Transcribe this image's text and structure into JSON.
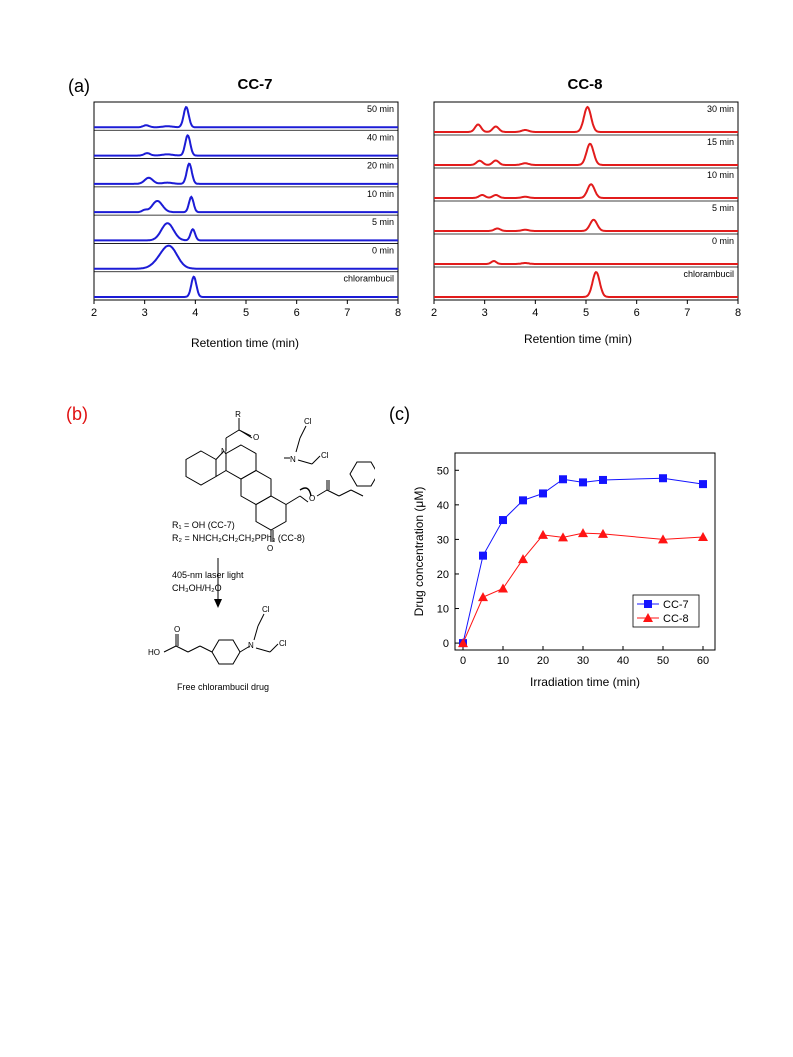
{
  "labels": {
    "a": "(a)",
    "b": "(b)",
    "c": "(c)"
  },
  "panel_a": {
    "left": {
      "title": "CC-7",
      "xlabel": "Retention time (min)",
      "xlim": [
        2,
        8
      ],
      "xticks": [
        "2",
        "3",
        "4",
        "5",
        "6",
        "7",
        "8"
      ],
      "color": "#1c1cd6",
      "traces": [
        {
          "label": "50 min",
          "peaks": [
            [
              3.82,
              1.0,
              0.05
            ],
            [
              3.03,
              0.1,
              0.06
            ],
            [
              3.45,
              0.05,
              0.1
            ]
          ]
        },
        {
          "label": "40 min",
          "peaks": [
            [
              3.85,
              1.0,
              0.05
            ],
            [
              3.05,
              0.12,
              0.06
            ],
            [
              3.45,
              0.06,
              0.1
            ]
          ]
        },
        {
          "label": "20 min",
          "peaks": [
            [
              3.88,
              1.0,
              0.05
            ],
            [
              3.08,
              0.3,
              0.08
            ],
            [
              3.45,
              0.06,
              0.1
            ]
          ]
        },
        {
          "label": "10 min",
          "peaks": [
            [
              3.92,
              0.75,
              0.045
            ],
            [
              3.25,
              0.55,
              0.1
            ],
            [
              3.0,
              0.1,
              0.05
            ]
          ]
        },
        {
          "label": "5 min",
          "peaks": [
            [
              3.95,
              0.55,
              0.045
            ],
            [
              3.45,
              0.85,
              0.12
            ]
          ]
        },
        {
          "label": "0 min",
          "peaks": [
            [
              3.5,
              1.0,
              0.15
            ],
            [
              3.3,
              0.3,
              0.15
            ]
          ]
        },
        {
          "label": "chlorambucil",
          "peaks": [
            [
              3.97,
              1.0,
              0.05
            ]
          ]
        }
      ]
    },
    "right": {
      "title": "CC-8",
      "xlabel": "Retention time (min)",
      "xlim": [
        2,
        8
      ],
      "xticks": [
        "2",
        "3",
        "4",
        "5",
        "6",
        "7",
        "8"
      ],
      "color": "#e21c1c",
      "traces": [
        {
          "label": "30 min",
          "peaks": [
            [
              5.03,
              1.0,
              0.07
            ],
            [
              2.87,
              0.3,
              0.06
            ],
            [
              3.22,
              0.22,
              0.06
            ],
            [
              3.8,
              0.08,
              0.07
            ]
          ]
        },
        {
          "label": "15 min",
          "peaks": [
            [
              5.08,
              0.85,
              0.07
            ],
            [
              2.9,
              0.17,
              0.06
            ],
            [
              3.22,
              0.18,
              0.06
            ],
            [
              3.8,
              0.07,
              0.07
            ]
          ]
        },
        {
          "label": "10 min",
          "peaks": [
            [
              5.1,
              0.55,
              0.07
            ],
            [
              2.95,
              0.12,
              0.06
            ],
            [
              3.22,
              0.12,
              0.06
            ],
            [
              3.8,
              0.05,
              0.07
            ]
          ]
        },
        {
          "label": "5 min",
          "peaks": [
            [
              5.15,
              0.45,
              0.07
            ],
            [
              3.25,
              0.1,
              0.06
            ],
            [
              3.8,
              0.05,
              0.07
            ]
          ]
        },
        {
          "label": "0 min",
          "peaks": [
            [
              3.18,
              0.12,
              0.05
            ],
            [
              3.8,
              0.04,
              0.07
            ]
          ]
        },
        {
          "label": "chlorambucil",
          "peaks": [
            [
              5.2,
              1.0,
              0.07
            ]
          ]
        }
      ]
    }
  },
  "panel_b": {
    "r_group": "R",
    "atoms": {
      "o": "O",
      "n": "N",
      "cl": "Cl",
      "ho": "HO"
    },
    "r1_line": "R₁ = OH (CC-7)",
    "r2_line": "R₂ = NHCH₂CH₂CH₂PPh₃ (CC-8)",
    "cond1": "405-nm laser light",
    "cond2": "CH₃OH/H₂O",
    "product_label": "Free chlorambucil drug"
  },
  "chart_data": {
    "type": "line",
    "xlabel": "Irradiation time (min)",
    "ylabel": "Drug concentration (μM)",
    "xlim": [
      -2,
      63
    ],
    "ylim": [
      -2,
      55
    ],
    "xticks": [
      0,
      10,
      20,
      30,
      40,
      50,
      60
    ],
    "yticks": [
      0,
      10,
      20,
      30,
      40,
      50
    ],
    "legend_position": "bottom-right",
    "series": [
      {
        "name": "CC-7",
        "color": "#1414ff",
        "marker": "square",
        "x": [
          0,
          5,
          10,
          15,
          20,
          25,
          30,
          35,
          50,
          60
        ],
        "y": [
          0,
          25.3,
          35.6,
          41.3,
          43.3,
          47.4,
          46.5,
          47.2,
          47.7,
          46.0
        ]
      },
      {
        "name": "CC-8",
        "color": "#ff1414",
        "marker": "triangle",
        "x": [
          0,
          5,
          10,
          15,
          20,
          25,
          30,
          35,
          50,
          60
        ],
        "y": [
          0,
          13.3,
          15.8,
          24.3,
          31.3,
          30.6,
          31.8,
          31.6,
          30.0,
          30.7
        ]
      }
    ]
  }
}
